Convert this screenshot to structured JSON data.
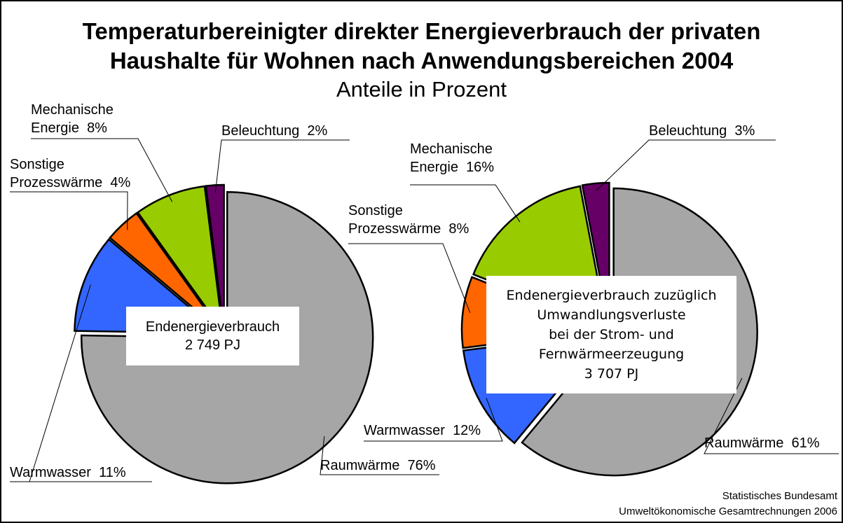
{
  "title": [
    "Temperaturbereinigter direkter Energieverbrauch der privaten",
    "Haushalte für Wohnen nach Anwendungsbereichen 2004"
  ],
  "subtitle": "Anteile in Prozent",
  "source": [
    "Statistisches Bundesamt",
    "Umweltökonomische Gesamtrechnungen 2006"
  ],
  "chart_data": [
    {
      "type": "pie",
      "categories": [
        "Raumwärme",
        "Warmwasser",
        "Sonstige Prozesswärme",
        "Mechanische Energie",
        "Beleuchtung"
      ],
      "values": [
        76,
        11,
        4,
        8,
        2
      ],
      "value_labels": [
        "76%",
        "11%",
        "4%",
        "8%",
        "2%"
      ],
      "colors": [
        "#a6a6a6",
        "#3366ff",
        "#ff6600",
        "#99cc00",
        "#660066"
      ],
      "center_label": [
        "Endenergieverbrauch",
        "2 749 PJ"
      ]
    },
    {
      "type": "pie",
      "categories": [
        "Raumwärme",
        "Warmwasser",
        "Sonstige Prozesswärme",
        "Mechanische Energie",
        "Beleuchtung"
      ],
      "values": [
        61,
        12,
        8,
        16,
        3
      ],
      "value_labels": [
        "61%",
        "12%",
        "8%",
        "16%",
        "3%"
      ],
      "colors": [
        "#a6a6a6",
        "#3366ff",
        "#ff6600",
        "#99cc00",
        "#660066"
      ],
      "center_label": [
        "Endenergieverbrauch zuzüglich",
        "Umwandlungsverluste",
        "bei der Strom- und",
        "Fernwärmeerzeugung",
        "3 707 PJ"
      ]
    }
  ]
}
